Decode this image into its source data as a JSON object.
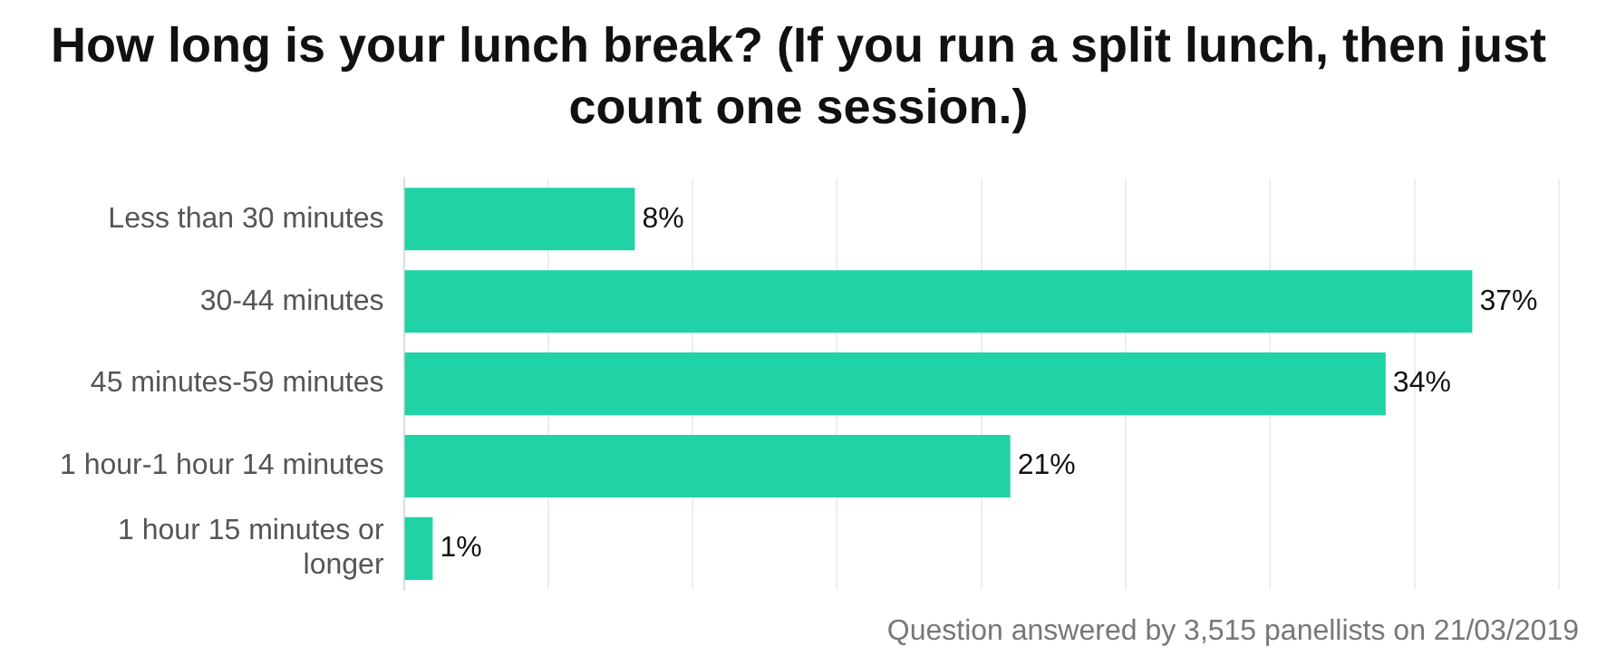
{
  "chart_data": {
    "type": "bar",
    "orientation": "horizontal",
    "title": "How long is your lunch break? (If you run a split lunch, then just count one session.)",
    "categories": [
      "Less than 30 minutes",
      "30-44 minutes",
      "45 minutes-59 minutes",
      "1 hour-1 hour 14 minutes",
      "1 hour 15 minutes or longer"
    ],
    "values": [
      8,
      37,
      34,
      21,
      1
    ],
    "color": "#1fd3a6",
    "value_labels": [
      "8%",
      "37%",
      "34%",
      "21%",
      "1%"
    ],
    "xlim": [
      0,
      40
    ],
    "xticks": [
      {
        "value": 0,
        "label": null
      },
      {
        "value": 5,
        "label": null
      },
      {
        "value": 10,
        "label": null
      },
      {
        "value": 15,
        "label": null
      },
      {
        "value": 20,
        "label": null
      },
      {
        "value": 25,
        "label": null
      },
      {
        "value": 30,
        "label": null
      },
      {
        "value": 35,
        "label": null
      },
      {
        "value": 40,
        "label": null
      }
    ],
    "tick_labels": "y",
    "grid": "x",
    "annotations": [
      "Question answered by 3,515 panellists on 21/03/2019"
    ]
  }
}
